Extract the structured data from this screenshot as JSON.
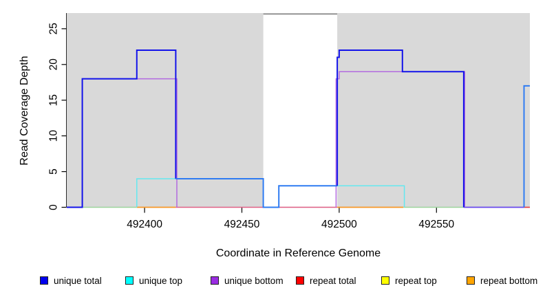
{
  "y_axis": {
    "label": "Read Coverage Depth",
    "ticks": [
      0,
      5,
      10,
      15,
      20,
      25
    ]
  },
  "x_axis": {
    "label": "Coordinate in Reference Genome",
    "ticks": [
      492400,
      492450,
      492500,
      492550
    ]
  },
  "legend": {
    "items": [
      {
        "label": "unique total",
        "fill": "#0000ee"
      },
      {
        "label": "unique top",
        "fill": "#00ffff"
      },
      {
        "label": "unique bottom",
        "fill": "#9a2ce2"
      },
      {
        "label": "repeat total",
        "fill": "#ff0000"
      },
      {
        "label": "repeat top",
        "fill": "#ffff00"
      },
      {
        "label": "repeat bottom",
        "fill": "#ffa500"
      }
    ]
  },
  "colors": {
    "plot_background": "#d9d9d9",
    "gap_band": "#ffffff",
    "gap_band_top_line": "#8c8c8c",
    "axis_line": "#2a2a2a"
  },
  "chart_data": {
    "type": "line",
    "title": "",
    "xlabel": "Coordinate in Reference Genome",
    "ylabel": "Read Coverage Depth",
    "xlim": [
      492360,
      492598
    ],
    "ylim": [
      0,
      27.2
    ],
    "x_ticks": [
      492400,
      492450,
      492500,
      492550
    ],
    "y_ticks": [
      0,
      5,
      10,
      15,
      20,
      25
    ],
    "grid": false,
    "legend_position": "bottom",
    "gap_region": {
      "x_start": 492461,
      "x_end": 492499
    },
    "series": [
      {
        "name": "unique total",
        "color": "#0000ee",
        "steps": [
          [
            492360,
            0
          ],
          [
            492368,
            18
          ],
          [
            492396,
            22
          ],
          [
            492416,
            4
          ],
          [
            492461,
            0
          ],
          [
            492469,
            3
          ],
          [
            492499,
            21
          ],
          [
            492500,
            22
          ],
          [
            492533,
            19
          ],
          [
            492564,
            0
          ],
          [
            492595,
            17
          ],
          [
            492598,
            17
          ]
        ]
      },
      {
        "name": "unique top",
        "color": "#00ffff",
        "steps": [
          [
            492360,
            0
          ],
          [
            492396,
            4
          ],
          [
            492461,
            0
          ],
          [
            492469,
            3
          ],
          [
            492533,
            0
          ],
          [
            492595,
            17
          ],
          [
            492598,
            17
          ]
        ]
      },
      {
        "name": "unique bottom",
        "color": "#9a2ce2",
        "steps": [
          [
            492360,
            0
          ],
          [
            492368,
            18
          ],
          [
            492416,
            0
          ],
          [
            492499,
            18
          ],
          [
            492500,
            19
          ],
          [
            492564,
            0
          ],
          [
            492598,
            0
          ]
        ]
      },
      {
        "name": "repeat total",
        "color": "#ff0000",
        "steps": [
          [
            492360,
            0
          ],
          [
            492598,
            0
          ]
        ]
      },
      {
        "name": "repeat top",
        "color": "#ffff00",
        "steps": [
          [
            492360,
            0
          ],
          [
            492598,
            0
          ]
        ]
      },
      {
        "name": "repeat bottom",
        "color": "#ffa500",
        "steps": [
          [
            492360,
            0
          ],
          [
            492598,
            0
          ]
        ]
      }
    ]
  },
  "render_paths": [
    {
      "name": "baseline-green-left",
      "color": "#9bd49b",
      "w": 1.5,
      "pts": [
        [
          492368,
          0
        ],
        [
          492396,
          0
        ]
      ]
    },
    {
      "name": "baseline-orange-left",
      "color": "#f79726",
      "w": 1.8,
      "pts": [
        [
          492396,
          0
        ],
        [
          492416,
          0
        ]
      ]
    },
    {
      "name": "baseline-crimson",
      "color": "#df5f85",
      "w": 1.5,
      "pts": [
        [
          492416,
          0
        ],
        [
          492499,
          0
        ]
      ]
    },
    {
      "name": "baseline-orange-right",
      "color": "#f79726",
      "w": 1.8,
      "pts": [
        [
          492499,
          0
        ],
        [
          492533,
          0
        ]
      ]
    },
    {
      "name": "baseline-green-right",
      "color": "#9bd49b",
      "w": 1.5,
      "pts": [
        [
          492533,
          0
        ],
        [
          492564,
          0
        ]
      ]
    },
    {
      "name": "baseline-violet",
      "color": "#6747ec",
      "w": 1.7,
      "pts": [
        [
          492564,
          0
        ],
        [
          492595,
          0
        ]
      ]
    },
    {
      "name": "baseline-red-right",
      "color": "#e63f3f",
      "w": 1.7,
      "pts": [
        [
          492595,
          0
        ],
        [
          492598,
          0
        ]
      ]
    },
    {
      "name": "unique-bottom-left-block",
      "color": "#b26ae0",
      "w": 1.5,
      "pts": [
        [
          492368,
          0
        ],
        [
          492368,
          18
        ],
        [
          492416.6,
          18
        ],
        [
          492416.6,
          0
        ]
      ]
    },
    {
      "name": "unique-bottom-right-block",
      "color": "#b26ae0",
      "w": 1.5,
      "pts": [
        [
          492498.4,
          0
        ],
        [
          492498.4,
          18
        ],
        [
          492500,
          18
        ],
        [
          492500,
          19
        ],
        [
          492564.5,
          19
        ],
        [
          492564.5,
          0
        ]
      ]
    },
    {
      "name": "unique-top-left-block",
      "color": "#63e8f0",
      "w": 1.5,
      "pts": [
        [
          492396,
          0
        ],
        [
          492396,
          4
        ],
        [
          492461,
          4
        ]
      ]
    },
    {
      "name": "unique-top-right-block",
      "color": "#63e8f0",
      "w": 1.5,
      "pts": [
        [
          492499,
          3
        ],
        [
          492533.5,
          3
        ],
        [
          492533.5,
          0
        ]
      ]
    },
    {
      "name": "unique-total-left",
      "color": "#1313ea",
      "w": 2,
      "pts": [
        [
          492360,
          0
        ],
        [
          492368,
          0
        ],
        [
          492368,
          18
        ],
        [
          492396,
          18
        ],
        [
          492396,
          22
        ],
        [
          492416,
          22
        ],
        [
          492416,
          4
        ]
      ]
    },
    {
      "name": "unique-total-mid-light",
      "color": "#2e7bf2",
      "w": 2,
      "pts": [
        [
          492416,
          4
        ],
        [
          492461,
          4
        ],
        [
          492461,
          0
        ],
        [
          492469,
          0
        ],
        [
          492469,
          3
        ],
        [
          492499,
          3
        ]
      ]
    },
    {
      "name": "unique-total-right",
      "color": "#1313ea",
      "w": 2,
      "pts": [
        [
          492499,
          3
        ],
        [
          492499,
          21
        ],
        [
          492500,
          21
        ],
        [
          492500,
          22
        ],
        [
          492532.5,
          22
        ],
        [
          492532.5,
          19
        ],
        [
          492564,
          19
        ],
        [
          492564,
          0
        ]
      ]
    },
    {
      "name": "unique-total-end-light",
      "color": "#2e7bf2",
      "w": 2,
      "pts": [
        [
          492595,
          0
        ],
        [
          492595,
          17
        ],
        [
          492598,
          17
        ]
      ]
    }
  ]
}
